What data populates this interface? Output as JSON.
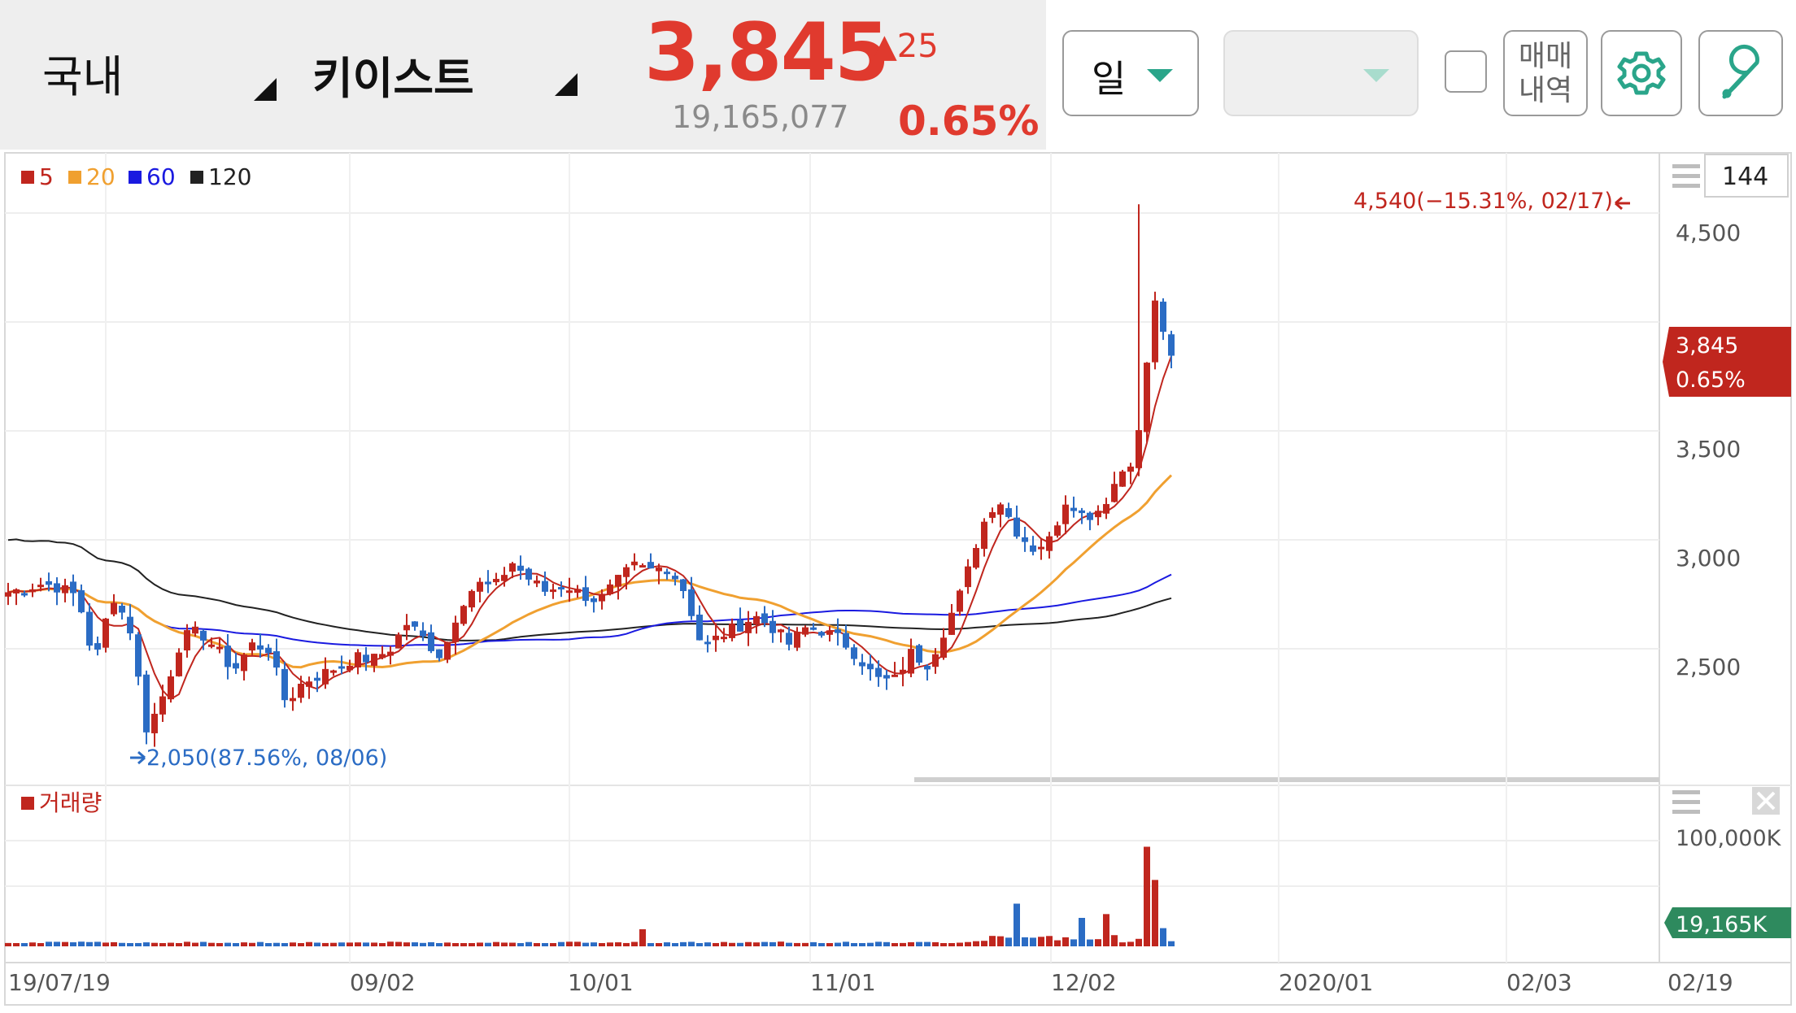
{
  "header": {
    "market": "국내",
    "stock_name": "키이스트",
    "price": "3,845",
    "change": "▲25",
    "volume": "19,165,077",
    "change_pct": "0.65%"
  },
  "toolbar": {
    "period_label": "일",
    "trade_history_line1": "매매",
    "trade_history_line2": "내역",
    "settings_icon": "gear-icon",
    "tools_icon": "wrench-icon"
  },
  "chart": {
    "count_box": "144",
    "legend": [
      {
        "label": "5",
        "color": "#c0261e"
      },
      {
        "label": "20",
        "color": "#f0a030"
      },
      {
        "label": "60",
        "color": "#1a1ae0"
      },
      {
        "label": "120",
        "color": "#222222"
      }
    ],
    "high_annotation": "4,540(−15.31%, 02/17)",
    "low_annotation": "2,050(87.56%, 08/06)",
    "current_price_tag": "3,845",
    "current_pct_tag": "0.65%",
    "price_axis": [
      "4,500",
      "3,500",
      "3,000",
      "2,500"
    ],
    "volume_label": "거래량",
    "volume_axis": [
      "100,000K"
    ],
    "current_volume_tag": "19,165K",
    "date_axis": [
      "19/07/19",
      "09/02",
      "10/01",
      "11/01",
      "12/02",
      "2020/01",
      "02/03",
      "02/19"
    ]
  },
  "chart_data": {
    "type": "candlestick",
    "series": [
      {
        "name": "5"
      },
      {
        "name": "20"
      },
      {
        "name": "60"
      },
      {
        "name": "120"
      }
    ],
    "close_anchors": [
      2760,
      2780,
      2800,
      2780,
      2740,
      2430,
      2750,
      2600,
      2120,
      2300,
      2550,
      2580,
      2500,
      2400,
      2520,
      2500,
      2250,
      2350,
      2380,
      2420,
      2460,
      2450,
      2500,
      2620,
      2540,
      2460,
      2700,
      2800,
      2780,
      2900,
      2820,
      2760,
      2800,
      2750,
      2720,
      2800,
      2880,
      2860,
      2880,
      2760,
      2500,
      2560,
      2600,
      2650,
      2600,
      2520,
      2600,
      2580,
      2540,
      2460,
      2360,
      2350,
      2480,
      2430,
      2600,
      2780,
      3050,
      3200,
      3050,
      2960,
      3000,
      3200,
      3100,
      3150,
      3300,
      3400,
      4100,
      3845
    ],
    "high": 4540,
    "high_date": "02/17",
    "low": 2050,
    "low_date": "08/06",
    "ylim": [
      2000,
      4700
    ],
    "volume_ylim": [
      0,
      120000
    ]
  }
}
